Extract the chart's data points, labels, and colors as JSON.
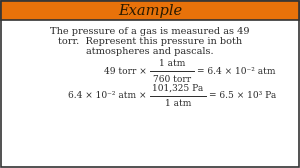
{
  "title": "Example",
  "title_bg_color": "#E8720A",
  "title_text_color": "#2a1a00",
  "bg_color": "#ffffff",
  "border_color": "#333333",
  "body_text_color": "#2a2a2a",
  "problem_line1": "The pressure of a gas is measured as 49",
  "problem_line2": "torr.  Represent this pressure in both",
  "problem_line3": "atmospheres and pascals.",
  "eq1_left": "49 torr ×",
  "eq1_num": "1 atm",
  "eq1_den": "760 torr",
  "eq1_right": "= 6.4 × 10⁻² atm",
  "eq2_left": "6.4 × 10⁻² atm ×",
  "eq2_num": "101,325 Pa",
  "eq2_den": "1 atm",
  "eq2_right": "= 6.5 × 10³ Pa",
  "fs_title": 10.5,
  "fs_body": 7.0,
  "fs_eq": 6.5
}
